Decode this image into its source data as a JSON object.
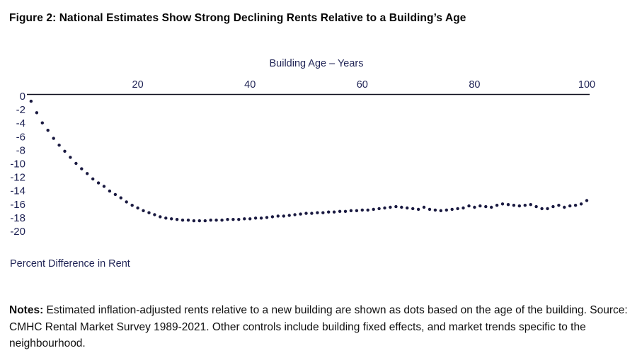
{
  "title": "Figure 2: National Estimates Show Strong Declining Rents Relative to a Building’s Age",
  "chart_data": {
    "type": "scatter",
    "title": "Figure 2: National Estimates Show Strong Declining Rents Relative to a Building’s Age",
    "x_axis_title": "Building Age – Years",
    "y_axis_title": "Percent Difference in Rent",
    "x_axis_position": "top",
    "grid": false,
    "legend": "none",
    "x_ticks": [
      20,
      40,
      60,
      80,
      100
    ],
    "y_ticks": [
      0,
      -2,
      -4,
      -6,
      -8,
      -10,
      -12,
      -14,
      -16,
      -18,
      -20
    ],
    "x_range": [
      0,
      101
    ],
    "y_range": [
      0,
      -20
    ],
    "dot_color": "#191940",
    "axis_line_color": "#10101f",
    "axis_text_color": "#1f2355",
    "x": [
      1,
      2,
      3,
      4,
      5,
      6,
      7,
      8,
      9,
      10,
      11,
      12,
      13,
      14,
      15,
      16,
      17,
      18,
      19,
      20,
      21,
      22,
      23,
      24,
      25,
      26,
      27,
      28,
      29,
      30,
      31,
      32,
      33,
      34,
      35,
      36,
      37,
      38,
      39,
      40,
      41,
      42,
      43,
      44,
      45,
      46,
      47,
      48,
      49,
      50,
      51,
      52,
      53,
      54,
      55,
      56,
      57,
      58,
      59,
      60,
      61,
      62,
      63,
      64,
      65,
      66,
      67,
      68,
      69,
      70,
      71,
      72,
      73,
      74,
      75,
      76,
      77,
      78,
      79,
      80,
      81,
      82,
      83,
      84,
      85,
      86,
      87,
      88,
      89,
      90,
      91,
      92,
      93,
      94,
      95,
      96,
      97,
      98,
      99,
      100
    ],
    "values": [
      -0.9,
      -2.6,
      -4.1,
      -5.2,
      -6.4,
      -7.4,
      -8.3,
      -9.2,
      -10.1,
      -10.9,
      -11.6,
      -12.4,
      -13.0,
      -13.5,
      -14.2,
      -14.7,
      -15.2,
      -15.8,
      -16.3,
      -16.7,
      -17.1,
      -17.4,
      -17.7,
      -18.0,
      -18.2,
      -18.3,
      -18.4,
      -18.5,
      -18.5,
      -18.6,
      -18.6,
      -18.6,
      -18.5,
      -18.5,
      -18.5,
      -18.4,
      -18.4,
      -18.4,
      -18.3,
      -18.3,
      -18.2,
      -18.2,
      -18.1,
      -18.0,
      -17.9,
      -17.9,
      -17.8,
      -17.7,
      -17.6,
      -17.5,
      -17.5,
      -17.4,
      -17.4,
      -17.3,
      -17.3,
      -17.2,
      -17.2,
      -17.1,
      -17.1,
      -17.0,
      -17.0,
      -16.9,
      -16.8,
      -16.7,
      -16.6,
      -16.5,
      -16.6,
      -16.7,
      -16.8,
      -16.9,
      -16.6,
      -16.9,
      -17.0,
      -17.1,
      -17.0,
      -16.9,
      -16.8,
      -16.7,
      -16.4,
      -16.6,
      -16.4,
      -16.5,
      -16.6,
      -16.3,
      -16.1,
      -16.2,
      -16.3,
      -16.4,
      -16.3,
      -16.2,
      -16.5,
      -16.8,
      -16.8,
      -16.5,
      -16.3,
      -16.6,
      -16.4,
      -16.3,
      -16.1,
      -15.6
    ]
  },
  "notes": {
    "label": "Notes:",
    "text": " Estimated inflation-adjusted rents relative to a new building are shown as dots based on the age of the building. Source: CMHC Rental Market Survey 1989-2021. Other controls include building fixed effects, and market trends specific to the neighbourhood."
  }
}
